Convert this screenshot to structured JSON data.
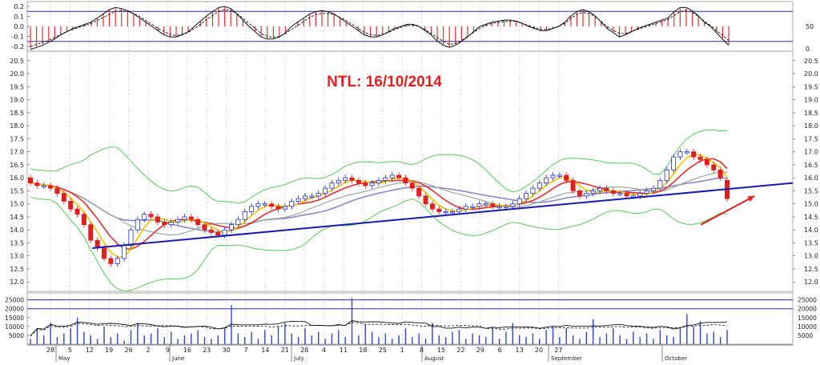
{
  "chart_data": [
    {
      "panel": "oscillator",
      "type": "bar",
      "y_ticks": [
        "0.2",
        "0.1",
        "0.0",
        "-0.1",
        "-0.2"
      ],
      "right_ticks": [
        "50",
        "0"
      ],
      "lines": [
        0.15,
        -0.15
      ],
      "values": [
        -0.22,
        -0.2,
        -0.18,
        -0.15,
        -0.12,
        -0.08,
        -0.05,
        -0.02,
        0.0,
        0.02,
        0.04,
        0.08,
        0.12,
        0.16,
        0.18,
        0.17,
        0.15,
        0.12,
        0.08,
        0.04,
        0.0,
        -0.04,
        -0.08,
        -0.1,
        -0.1,
        -0.08,
        -0.05,
        0.0,
        0.05,
        0.1,
        0.14,
        0.18,
        0.19,
        0.17,
        0.12,
        0.06,
        0.0,
        -0.05,
        -0.1,
        -0.12,
        -0.12,
        -0.1,
        -0.06,
        0.0,
        0.04,
        0.08,
        0.12,
        0.14,
        0.15,
        0.14,
        0.12,
        0.08,
        0.04,
        0.0,
        -0.04,
        -0.08,
        -0.1,
        -0.1,
        -0.08,
        -0.05,
        -0.02,
        0.0,
        0.02,
        0.02,
        0.0,
        -0.04,
        -0.08,
        -0.14,
        -0.18,
        -0.2,
        -0.18,
        -0.14,
        -0.1,
        -0.05,
        0.0,
        0.02,
        0.04,
        0.05,
        0.06,
        0.06,
        0.05,
        0.03,
        0.0,
        -0.02,
        -0.04,
        -0.04,
        -0.02,
        0.0,
        0.04,
        0.1,
        0.14,
        0.16,
        0.14,
        0.1,
        0.04,
        -0.02,
        -0.06,
        -0.1,
        -0.08,
        -0.05,
        -0.02,
        0.0,
        0.02,
        0.04,
        0.06,
        0.08,
        0.14,
        0.18,
        0.18,
        0.15,
        0.1,
        0.04,
        0.0,
        -0.06,
        -0.12,
        -0.18
      ],
      "signal": [
        -0.2,
        -0.18,
        -0.16,
        -0.14,
        -0.11,
        -0.08,
        -0.05,
        -0.03,
        -0.01,
        0.01,
        0.03,
        0.06,
        0.09,
        0.12,
        0.15,
        0.16,
        0.15,
        0.13,
        0.1,
        0.06,
        0.02,
        -0.02,
        -0.05,
        -0.08,
        -0.09,
        -0.08,
        -0.06,
        -0.02,
        0.02,
        0.07,
        0.11,
        0.15,
        0.17,
        0.16,
        0.13,
        0.08,
        0.03,
        -0.02,
        -0.07,
        -0.1,
        -0.11,
        -0.1,
        -0.07,
        -0.03,
        0.01,
        0.05,
        0.09,
        0.12,
        0.13,
        0.13,
        0.12,
        0.09,
        0.06,
        0.02,
        -0.02,
        -0.06,
        -0.08,
        -0.09,
        -0.08,
        -0.06,
        -0.03,
        -0.01,
        0.01,
        0.01,
        0.0,
        -0.03,
        -0.07,
        -0.11,
        -0.15,
        -0.18,
        -0.17,
        -0.14,
        -0.1,
        -0.06,
        -0.02,
        0.01,
        0.03,
        0.04,
        0.05,
        0.05,
        0.05,
        0.03,
        0.01,
        -0.01,
        -0.03,
        -0.03,
        -0.02,
        0.0,
        0.03,
        0.08,
        0.12,
        0.14,
        0.13,
        0.1,
        0.05,
        0.0,
        -0.04,
        -0.07,
        -0.07,
        -0.05,
        -0.03,
        -0.01,
        0.01,
        0.03,
        0.05,
        0.07,
        0.11,
        0.15,
        0.16,
        0.14,
        0.1,
        0.05,
        0.01,
        -0.04,
        -0.09,
        -0.14
      ]
    },
    {
      "panel": "price",
      "type": "candlestick",
      "title": "NTL: 16/10/2014",
      "y_ticks": [
        12.0,
        12.5,
        13.0,
        13.5,
        14.0,
        14.5,
        15.0,
        15.5,
        16.0,
        16.5,
        17.0,
        17.5,
        18.0,
        18.5,
        19.0,
        19.5,
        20.0,
        20.5
      ],
      "ylim": [
        11.7,
        20.8
      ],
      "closes": [
        15.8,
        15.7,
        15.7,
        15.6,
        15.4,
        15.1,
        14.8,
        14.6,
        14.2,
        13.6,
        13.3,
        12.9,
        12.7,
        12.9,
        13.4,
        14.0,
        14.4,
        14.6,
        14.5,
        14.3,
        14.2,
        14.3,
        14.4,
        14.5,
        14.4,
        14.2,
        14.0,
        13.9,
        13.8,
        14.0,
        14.2,
        14.4,
        14.7,
        14.9,
        15.0,
        15.0,
        14.9,
        14.8,
        14.9,
        15.1,
        15.2,
        15.3,
        15.3,
        15.4,
        15.6,
        15.8,
        15.9,
        16.0,
        15.9,
        15.8,
        15.7,
        15.8,
        15.9,
        16.0,
        16.1,
        16.0,
        15.8,
        15.6,
        15.3,
        15.0,
        14.8,
        14.7,
        14.7,
        14.7,
        14.8,
        14.9,
        14.9,
        15.0,
        15.0,
        14.9,
        14.9,
        14.9,
        15.0,
        15.2,
        15.4,
        15.6,
        15.8,
        16.0,
        16.1,
        16.1,
        15.9,
        15.5,
        15.3,
        15.4,
        15.5,
        15.6,
        15.5,
        15.4,
        15.4,
        15.3,
        15.3,
        15.4,
        15.5,
        15.6,
        15.9,
        16.3,
        16.8,
        17.0,
        17.0,
        16.8,
        16.7,
        16.5,
        16.3,
        16.0,
        15.2
      ],
      "opens": [
        16.0,
        15.8,
        15.7,
        15.7,
        15.6,
        15.4,
        15.1,
        14.8,
        14.6,
        14.2,
        13.6,
        13.3,
        12.9,
        12.7,
        12.9,
        13.4,
        14.0,
        14.4,
        14.6,
        14.5,
        14.3,
        14.2,
        14.3,
        14.4,
        14.5,
        14.4,
        14.2,
        14.0,
        13.9,
        13.8,
        14.0,
        14.2,
        14.4,
        14.7,
        14.9,
        15.0,
        15.0,
        14.9,
        14.8,
        14.9,
        15.1,
        15.2,
        15.3,
        15.3,
        15.4,
        15.6,
        15.8,
        15.9,
        16.0,
        15.9,
        15.8,
        15.7,
        15.8,
        15.9,
        16.0,
        16.1,
        16.0,
        15.8,
        15.6,
        15.3,
        15.0,
        14.8,
        14.7,
        14.7,
        14.7,
        14.8,
        14.9,
        14.9,
        15.0,
        15.0,
        14.9,
        14.9,
        14.9,
        15.0,
        15.2,
        15.4,
        15.6,
        15.8,
        16.0,
        16.1,
        16.1,
        15.9,
        15.5,
        15.3,
        15.4,
        15.5,
        15.6,
        15.5,
        15.4,
        15.4,
        15.3,
        15.3,
        15.4,
        15.5,
        15.6,
        15.9,
        16.3,
        16.8,
        17.0,
        17.0,
        16.8,
        16.7,
        16.5,
        16.3,
        15.9
      ],
      "trendline": [
        [
          0.085,
          13.3
        ],
        [
          1.0,
          15.8
        ]
      ],
      "annotation_arrow": [
        [
          0.88,
          14.2
        ],
        [
          0.95,
          15.3
        ]
      ]
    },
    {
      "panel": "volume",
      "type": "bar",
      "y_ticks": [
        "25000",
        "20000",
        "15000",
        "10000",
        "5000"
      ],
      "right_ticks": [
        "25000",
        "20000",
        "15000",
        "10000",
        "5000"
      ],
      "values": [
        3000,
        8000,
        5000,
        12000,
        4000,
        6000,
        9000,
        15000,
        7000,
        5000,
        3000,
        10000,
        4000,
        6000,
        2000,
        8000,
        12000,
        5000,
        6000,
        9000,
        4000,
        7000,
        3000,
        5000,
        6000,
        8000,
        4000,
        3000,
        5000,
        9000,
        22000,
        6000,
        4000,
        7000,
        3000,
        8000,
        5000,
        10000,
        12000,
        6000,
        4000,
        9000,
        5000,
        7000,
        3000,
        6000,
        8000,
        4000,
        26000,
        5000,
        11000,
        7000,
        4000,
        6000,
        3000,
        5000,
        9000,
        4000,
        6000,
        3000,
        12000,
        5000,
        4000,
        7000,
        8000,
        3000,
        6000,
        5000,
        4000,
        9000,
        3000,
        7000,
        12000,
        5000,
        4000,
        6000,
        3000,
        8000,
        10000,
        4000,
        9000,
        5000,
        3000,
        7000,
        14000,
        4000,
        6000,
        9000,
        5000,
        3000,
        7000,
        4000,
        6000,
        3000,
        8000,
        5000,
        4000,
        9000,
        17000,
        10000,
        13000,
        6000,
        7000,
        4000,
        8000
      ],
      "ylim": [
        0,
        28000
      ]
    }
  ],
  "x_axis": {
    "day_labels": [
      "28",
      "5",
      "12",
      "19",
      "26",
      "2",
      "9",
      "16",
      "23",
      "30",
      "7",
      "14",
      "21",
      "28",
      "4",
      "11",
      "18",
      "25",
      "1",
      "8",
      "15",
      "22",
      "29",
      "6",
      "13",
      "20",
      "27"
    ],
    "month_labels": [
      "May",
      "June",
      "July",
      "August",
      "September",
      "October"
    ]
  },
  "colors": {
    "candle_up": "#2233cc",
    "candle_down": "#e02020",
    "ma_fast": "#f2c200",
    "ma_mid": "#e03030",
    "ma_slow": "#8888cc",
    "bollinger": "#55cc55",
    "trendline": "#1a1ab0",
    "title": "#e02020",
    "panel_line": "#2a2aaa",
    "osc_bar": "#e03030"
  }
}
